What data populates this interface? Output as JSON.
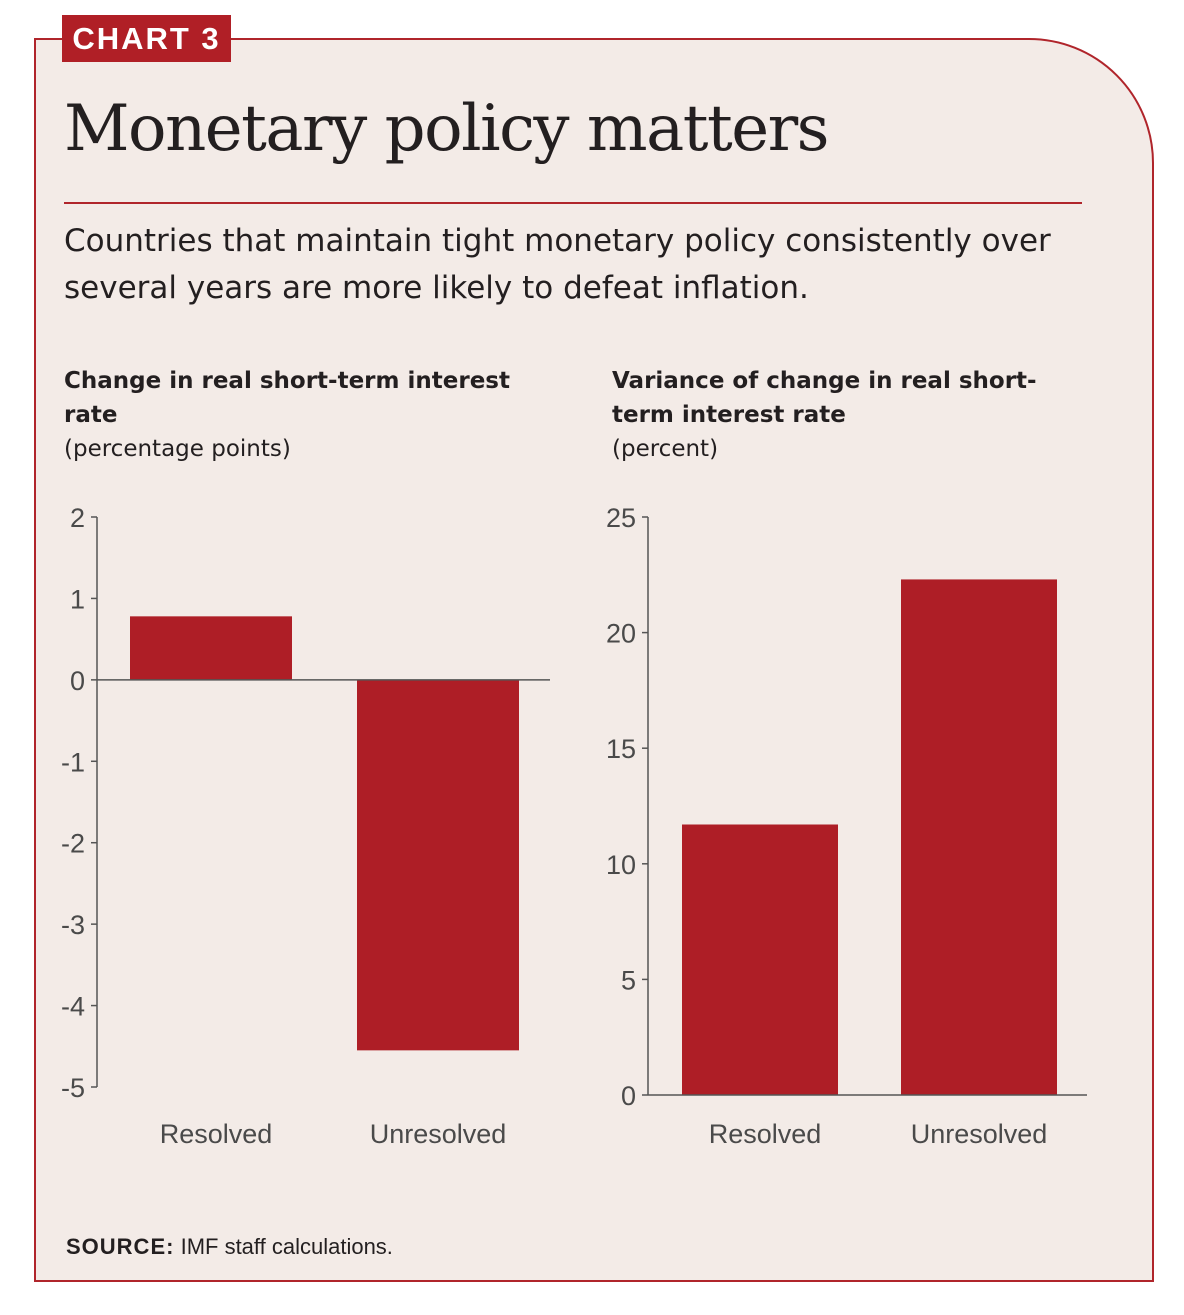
{
  "badge": "CHART 3",
  "title": "Monetary policy matters",
  "subtitle": "Countries that maintain tight monetary policy consistently over several years are more likely to defeat inflation.",
  "colors": {
    "bar": "#ae1e26",
    "accent": "#b0252b",
    "background": "#f3ebe7",
    "axis": "#555555"
  },
  "source": {
    "label": "SOURCE:",
    "text": "IMF staff calculations."
  },
  "chart_data": [
    {
      "type": "bar",
      "title": "Change in real short-term interest rate",
      "ylabel": "(percentage points)",
      "categories": [
        "Resolved",
        "Unresolved"
      ],
      "values": [
        0.78,
        -4.55
      ],
      "ylim": [
        -5,
        2
      ],
      "yticks": [
        2,
        1,
        0,
        -1,
        -2,
        -3,
        -4,
        -5
      ]
    },
    {
      "type": "bar",
      "title": "Variance of change in real short-term interest rate",
      "ylabel": "(percent)",
      "categories": [
        "Resolved",
        "Unresolved"
      ],
      "values": [
        11.7,
        22.3
      ],
      "ylim": [
        0,
        25
      ],
      "yticks": [
        25,
        20,
        15,
        10,
        5,
        0
      ]
    }
  ]
}
